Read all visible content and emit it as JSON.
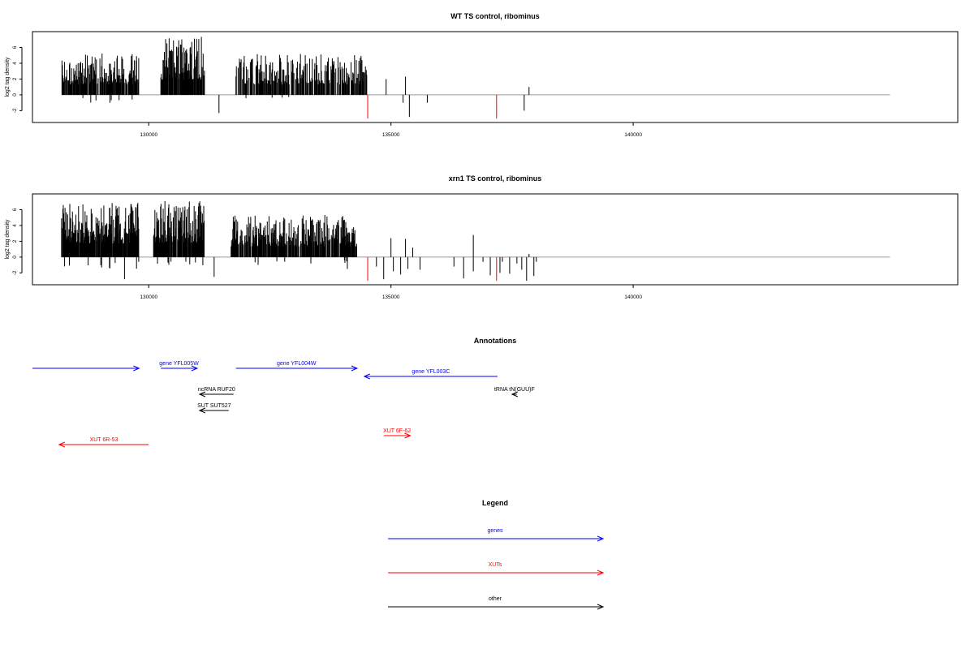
{
  "panels": [
    {
      "title": "WT TS control, ribominus",
      "ylabel": "log2 tag density",
      "yticks": [
        -2,
        0,
        2,
        4,
        6
      ],
      "ylim": [
        -3.5,
        8
      ],
      "xticks": [
        130000,
        135000,
        140000
      ],
      "xlim": [
        127600,
        146700
      ],
      "series": {
        "segments": [
          {
            "x0": 128200,
            "x1": 129800,
            "density": 0.85,
            "max": 5.3,
            "min": 0,
            "negprob": 0.02,
            "negmax": 1.0
          },
          {
            "x0": 130250,
            "x1": 131150,
            "density": 0.9,
            "max": 7.6,
            "min": 0,
            "negprob": 0,
            "negmax": 0
          },
          {
            "x0": 131800,
            "x1": 134500,
            "density": 0.7,
            "max": 5.2,
            "min": 0,
            "negprob": 0.01,
            "negmax": 0.5
          }
        ],
        "extra_bars": [
          {
            "x": 129200,
            "y": -1.0
          },
          {
            "x": 131450,
            "y": -2.3
          },
          {
            "x": 134900,
            "y": 2.0
          },
          {
            "x": 135300,
            "y": 2.3
          },
          {
            "x": 135250,
            "y": -1.0
          },
          {
            "x": 135380,
            "y": -2.8
          },
          {
            "x": 135750,
            "y": -1.0
          },
          {
            "x": 137750,
            "y": -2.0
          },
          {
            "x": 137850,
            "y": 1.0
          }
        ],
        "red_bars": [
          {
            "x": 134520,
            "y": -3.0
          },
          {
            "x": 137180,
            "y": -3.0
          }
        ]
      }
    },
    {
      "title": "xrn1 TS control, ribominus",
      "ylabel": "log2 tag density",
      "yticks": [
        -2,
        0,
        2,
        4,
        6
      ],
      "ylim": [
        -3.5,
        8
      ],
      "xticks": [
        130000,
        135000,
        140000
      ],
      "xlim": [
        127600,
        146700
      ],
      "series": {
        "segments": [
          {
            "x0": 128200,
            "x1": 129800,
            "density": 0.95,
            "max": 6.9,
            "min": 0,
            "negprob": 0.08,
            "negmax": 1.5
          },
          {
            "x0": 130100,
            "x1": 131150,
            "density": 0.95,
            "max": 7.1,
            "min": 0,
            "negprob": 0.05,
            "negmax": 1.3
          },
          {
            "x0": 131700,
            "x1": 134300,
            "density": 0.85,
            "max": 5.4,
            "min": 0,
            "negprob": 0.04,
            "negmax": 1.0
          }
        ],
        "extra_bars": [
          {
            "x": 129500,
            "y": -2.8
          },
          {
            "x": 131350,
            "y": -2.5
          },
          {
            "x": 134100,
            "y": -1.5
          },
          {
            "x": 134700,
            "y": -1.2
          },
          {
            "x": 134850,
            "y": -2.8
          },
          {
            "x": 135000,
            "y": 2.4
          },
          {
            "x": 135050,
            "y": -1.8
          },
          {
            "x": 135200,
            "y": -2.2
          },
          {
            "x": 135300,
            "y": 2.3
          },
          {
            "x": 135350,
            "y": -1.5
          },
          {
            "x": 135450,
            "y": 1.2
          },
          {
            "x": 135600,
            "y": -1.6
          },
          {
            "x": 136300,
            "y": -1.2
          },
          {
            "x": 136500,
            "y": -2.7
          },
          {
            "x": 136700,
            "y": 2.8
          },
          {
            "x": 136700,
            "y": -1.8
          },
          {
            "x": 136900,
            "y": -0.6
          },
          {
            "x": 137050,
            "y": -2.3
          },
          {
            "x": 137250,
            "y": -2.0
          },
          {
            "x": 137300,
            "y": -0.6
          },
          {
            "x": 137450,
            "y": -2.1
          },
          {
            "x": 137600,
            "y": -0.8
          },
          {
            "x": 137700,
            "y": -1.6
          },
          {
            "x": 137800,
            "y": -3.0
          },
          {
            "x": 137850,
            "y": 0.4
          },
          {
            "x": 137950,
            "y": -2.4
          },
          {
            "x": 138000,
            "y": -0.6
          }
        ],
        "red_bars": [
          {
            "x": 134520,
            "y": -3.0
          },
          {
            "x": 137180,
            "y": -3.0
          }
        ]
      }
    }
  ],
  "annotations": {
    "title": "Annotations",
    "xlim": [
      127600,
      146700
    ],
    "items": [
      {
        "label": "",
        "start": 127600,
        "end": 129800,
        "dir": "right",
        "row": 0,
        "kind": "genes"
      },
      {
        "label": "gene YFL005W",
        "start": 130250,
        "end": 131000,
        "dir": "right",
        "row": 0,
        "kind": "genes"
      },
      {
        "label": "gene YFL004W",
        "start": 131800,
        "end": 134300,
        "dir": "right",
        "row": 0,
        "kind": "genes"
      },
      {
        "label": "gene YFL003C",
        "start": 134450,
        "end": 137200,
        "dir": "left",
        "row": 1,
        "kind": "genes"
      },
      {
        "label": "ncRNA RUF20",
        "start": 131050,
        "end": 131750,
        "dir": "left",
        "row": 2,
        "kind": "other"
      },
      {
        "label": "tRNA tN(GUU)F",
        "start": 137500,
        "end": 137600,
        "dir": "left",
        "row": 2,
        "kind": "other"
      },
      {
        "label": "SUT SUT527",
        "start": 131050,
        "end": 131650,
        "dir": "left",
        "row": 3,
        "kind": "other"
      },
      {
        "label": "XUT 6F-62",
        "start": 134850,
        "end": 135400,
        "dir": "right",
        "row": 4,
        "kind": "XUTs"
      },
      {
        "label": "XUT 6R-53",
        "start": 128150,
        "end": 130000,
        "dir": "left",
        "row": 5,
        "kind": "XUTs"
      }
    ]
  },
  "legend": {
    "title": "Legend",
    "entries": [
      {
        "label": "genes",
        "color": "#0000ff"
      },
      {
        "label": "XUTs",
        "color": "#ff0000"
      },
      {
        "label": "other",
        "color": "#000000"
      }
    ]
  },
  "colors": {
    "genes": "#0000ff",
    "XUTs": "#ff0000",
    "other": "#000000",
    "bars": "#000000",
    "red_bars": "#ff0000",
    "baseline": "#999999"
  }
}
